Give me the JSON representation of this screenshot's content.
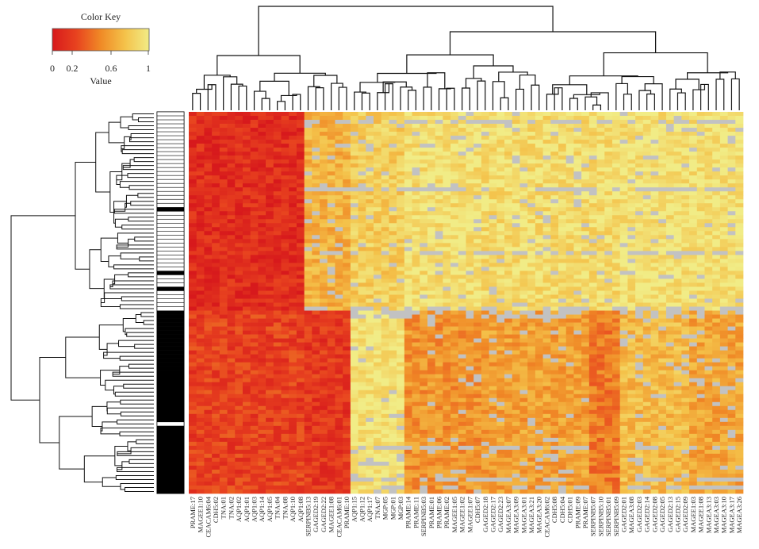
{
  "chart_data": {
    "type": "heatmap",
    "title": "",
    "color_key": {
      "title": "Color Key",
      "value_label": "Value",
      "ticks": [
        "0",
        "0.2",
        "0.6",
        "1"
      ],
      "range": [
        0,
        1
      ],
      "colors": [
        "#d7191c",
        "#e8431f",
        "#f08a26",
        "#f4c24a",
        "#f1ec86"
      ],
      "missing_color": "#c2c2c2"
    },
    "row_count": 96,
    "row_side_bar": {
      "top_group_label": "white",
      "bottom_group_label": "black"
    },
    "column_labels": [
      "PRAME:17",
      "MAGEE1:10",
      "CEACAM6:04",
      "CDH5:02",
      "TNA:01",
      "TNA:02",
      "AQP1:02",
      "AQP1:01",
      "AQP1:03",
      "AQP1:14",
      "AQP1:05",
      "TNA:04",
      "TNA:08",
      "AQP1:10",
      "AQP1:08",
      "SERPINB5:13",
      "GAGED2:19",
      "GAGED2:22",
      "MAGEE1:08",
      "CEACAM6:01",
      "PRAME:10",
      "AQP1:15",
      "AQP1:12",
      "AQP1:17",
      "TNA:07",
      "MGP:05",
      "MGP:01",
      "MGP:03",
      "PRAME:14",
      "PRAME:11",
      "SERPINB5:03",
      "PRAME:01",
      "PRAME:06",
      "PRAME:02",
      "MAGEE1:05",
      "MAGEE1:02",
      "MAGEE1:07",
      "CDH5:07",
      "GAGED2:18",
      "GAGED2:17",
      "GAGED2:23",
      "MAGEA3:07",
      "MAGEA3:09",
      "MAGEA3:01",
      "MAGEA3:21",
      "MAGEA3:20",
      "CEACAM6:02",
      "CDH5:08",
      "CDH5:04",
      "CDH5:01",
      "PRAME:09",
      "PRAME:07",
      "SERPINB5:07",
      "SERPINB5:10",
      "SERPINB5:01",
      "SERPINB5:09",
      "GAGED2:01",
      "MAGEA3:08",
      "GAGED2:03",
      "GAGED2:14",
      "GAGED2:08",
      "GAGED2:05",
      "GAGED2:13",
      "GAGED2:15",
      "GAGED2:09",
      "MAGEE1:03",
      "MAGEE1:08",
      "MAGEA3:13",
      "MAGEA3:03",
      "MAGEA3:10",
      "MAGEA3:17",
      "MAGEA3:26"
    ],
    "column_blocks": [
      {
        "name": "block-1",
        "columns": 15,
        "value_top": 0.12,
        "value_bottom": 0.22
      },
      {
        "name": "block-2",
        "columns": 6,
        "value_top": 0.68,
        "value_bottom": 0.18
      },
      {
        "name": "block-3",
        "columns": 7,
        "value_top": 0.82,
        "value_bottom": 0.95
      },
      {
        "name": "block-4",
        "columns": 10,
        "value_top": 0.92,
        "value_bottom": 0.55
      },
      {
        "name": "block-5",
        "columns": 14,
        "value_top": 0.9,
        "value_bottom": 0.6
      },
      {
        "name": "block-6",
        "columns": 4,
        "value_top": 0.9,
        "value_bottom": 0.45
      },
      {
        "name": "block-7",
        "columns": 9,
        "value_top": 0.93,
        "value_bottom": 0.72
      },
      {
        "name": "block-8",
        "columns": 7,
        "value_top": 0.93,
        "value_bottom": 0.62
      }
    ],
    "row_groups": [
      {
        "name": "upper-cluster",
        "rows": 50,
        "side_bar": "white"
      },
      {
        "name": "lower-cluster",
        "rows": 46,
        "side_bar": "black"
      }
    ]
  }
}
